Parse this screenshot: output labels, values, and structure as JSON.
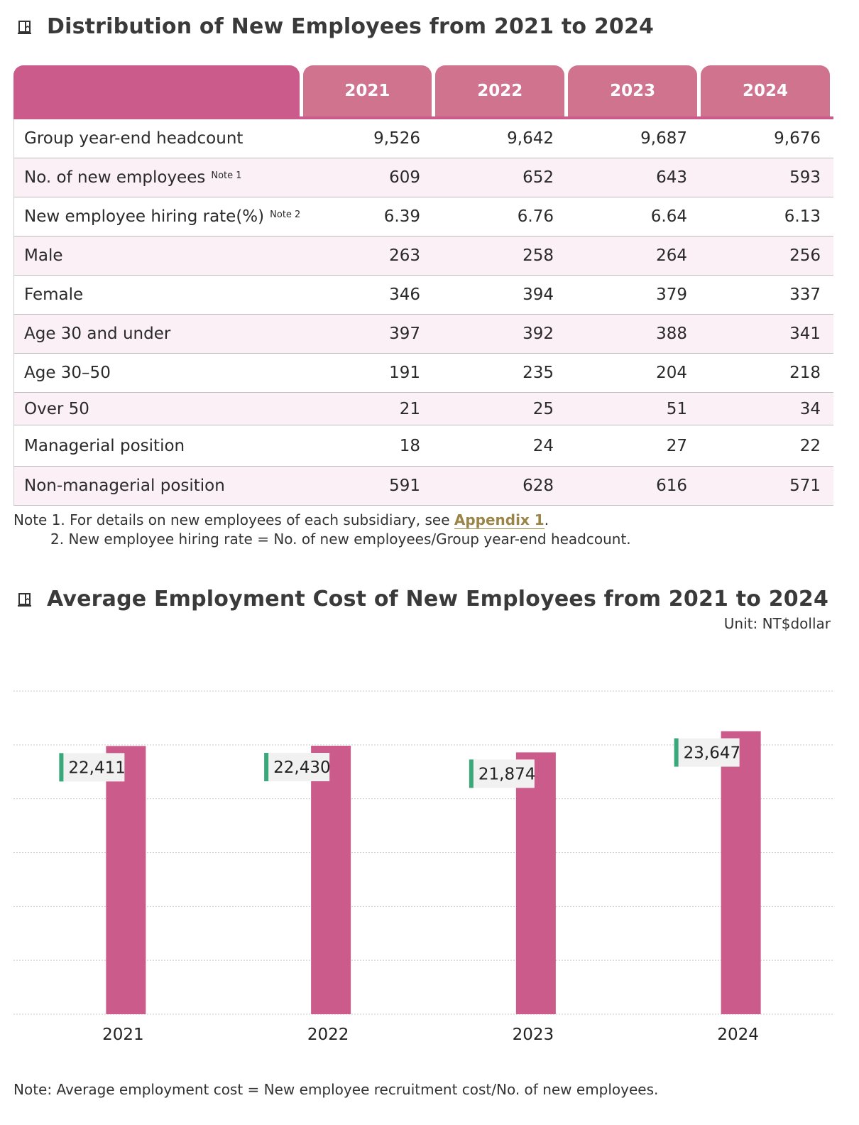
{
  "section1": {
    "title": "Distribution of New Employees from 2021 to 2024"
  },
  "table": {
    "headers": [
      "2021",
      "2022",
      "2023",
      "2024"
    ],
    "rows": [
      {
        "label": "Group year-end headcount",
        "note": "",
        "values": [
          "9,526",
          "9,642",
          "9,687",
          "9,676"
        ]
      },
      {
        "label": "No. of new employees",
        "note": "Note 1",
        "values": [
          "609",
          "652",
          "643",
          "593"
        ]
      },
      {
        "label": "New employee hiring rate(%)",
        "note": "Note 2",
        "values": [
          "6.39",
          "6.76",
          "6.64",
          "6.13"
        ]
      },
      {
        "label": "Male",
        "note": "",
        "values": [
          "263",
          "258",
          "264",
          "256"
        ]
      },
      {
        "label": "Female",
        "note": "",
        "values": [
          "346",
          "394",
          "379",
          "337"
        ]
      },
      {
        "label": "Age 30 and under",
        "note": "",
        "values": [
          "397",
          "392",
          "388",
          "341"
        ]
      },
      {
        "label": "Age 30–50",
        "note": "",
        "values": [
          "191",
          "235",
          "204",
          "218"
        ]
      },
      {
        "label": "Over 50",
        "note": "",
        "values": [
          "21",
          "25",
          "51",
          "34"
        ]
      },
      {
        "label": "Managerial position",
        "note": "",
        "values": [
          "18",
          "24",
          "27",
          "22"
        ]
      },
      {
        "label": "Non-managerial position",
        "note": "",
        "values": [
          "591",
          "628",
          "616",
          "571"
        ]
      }
    ]
  },
  "notes": {
    "line1_prefix": "Note 1. For details on new employees of each subsidiary, see ",
    "line1_link": "Appendix 1",
    "line1_suffix": ".",
    "line2": "2. New employee hiring rate = No. of new employees/Group year-end headcount."
  },
  "section2": {
    "title": "Average Employment Cost of New Employees from 2021 to 2024",
    "unit": "Unit: NT$dollar",
    "footnote": "Note: Average employment cost = New employee recruitment cost/No. of new employees."
  },
  "chart_data": {
    "type": "bar",
    "categories": [
      "2021",
      "2022",
      "2023",
      "2024"
    ],
    "values": [
      22411,
      22430,
      21874,
      23647
    ],
    "data_labels": [
      "22,411",
      "22,430",
      "21,874",
      "23,647"
    ],
    "ylim": [
      0,
      27000
    ],
    "grid": true,
    "bar_color": "#cb5b8b",
    "label_marker_color": "#3aa87a"
  },
  "colors": {
    "header_primary": "#cb5b8b",
    "header_year": "#cf738e",
    "row_alt": "#fbf0f5",
    "link": "#9a8448"
  }
}
